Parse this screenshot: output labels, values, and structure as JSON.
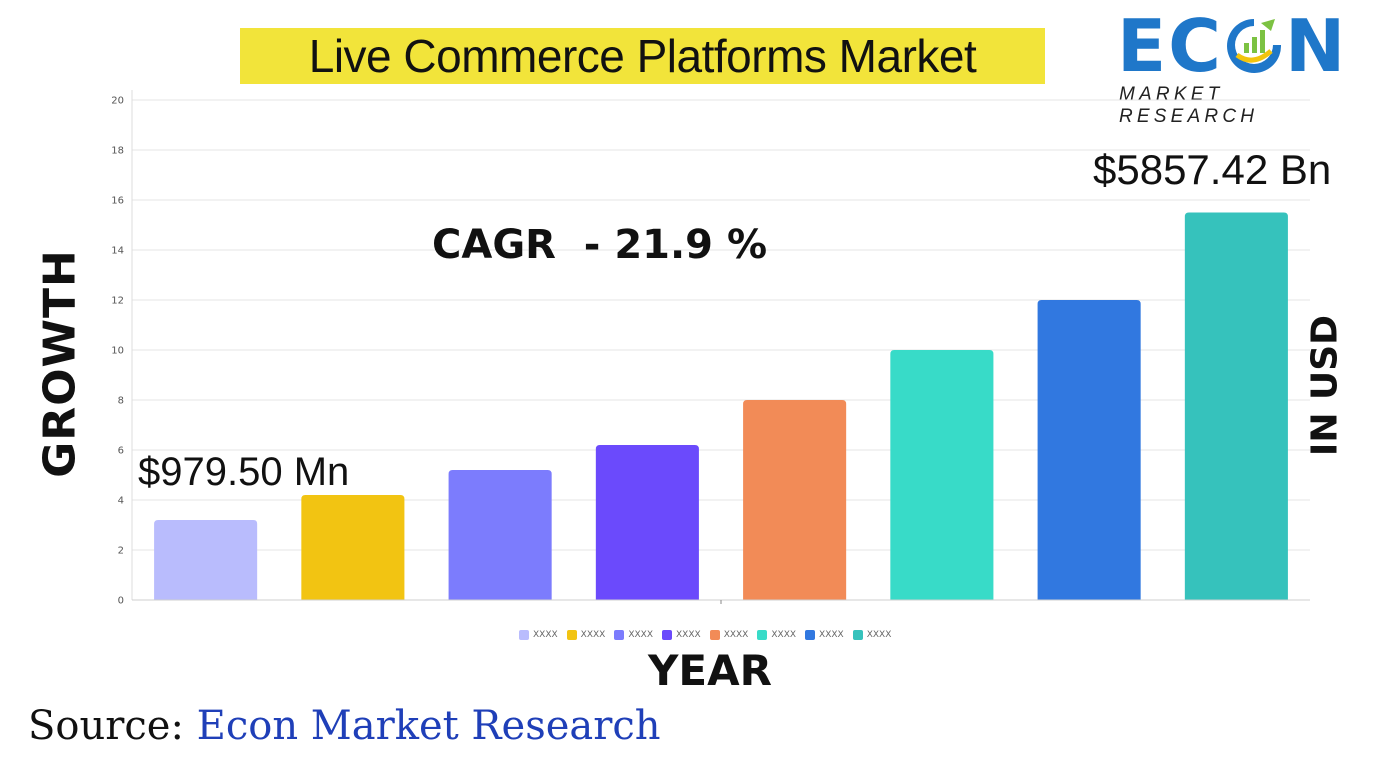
{
  "header": {
    "title": "Live Commerce Platforms Market"
  },
  "logo": {
    "word_left": "EC",
    "word_right": "N",
    "subtitle": "MARKET RESEARCH",
    "colors": {
      "primary": "#1f77c9",
      "accent": "#f2c40c",
      "green": "#7cc242"
    }
  },
  "labels": {
    "y_left": "GROWTH",
    "y_right": "IN USD",
    "x": "YEAR",
    "cagr": "CAGR  - 21.9 %",
    "start_value": "$979.50 Mn",
    "end_value": "$5857.42 Bn"
  },
  "source": {
    "prefix": "Source: ",
    "org": "Econ Market Research"
  },
  "chart_data": {
    "type": "bar",
    "categories": [
      "XXXX",
      "XXXX",
      "XXXX",
      "XXXX",
      "XXXX",
      "XXXX",
      "XXXX",
      "XXXX"
    ],
    "values": [
      3.2,
      4.2,
      5.2,
      6.2,
      8.0,
      10.0,
      12.0,
      15.5
    ],
    "colors": [
      "#b9bcfd",
      "#f2c412",
      "#7c7cfd",
      "#6b4afc",
      "#f28b57",
      "#38dbc8",
      "#3178e0",
      "#36c2bc"
    ],
    "ylim": [
      0,
      20
    ],
    "yticks": [
      0,
      2,
      4,
      6,
      8,
      10,
      12,
      14,
      16,
      18,
      20
    ],
    "grid": true,
    "legend": "bottom"
  }
}
